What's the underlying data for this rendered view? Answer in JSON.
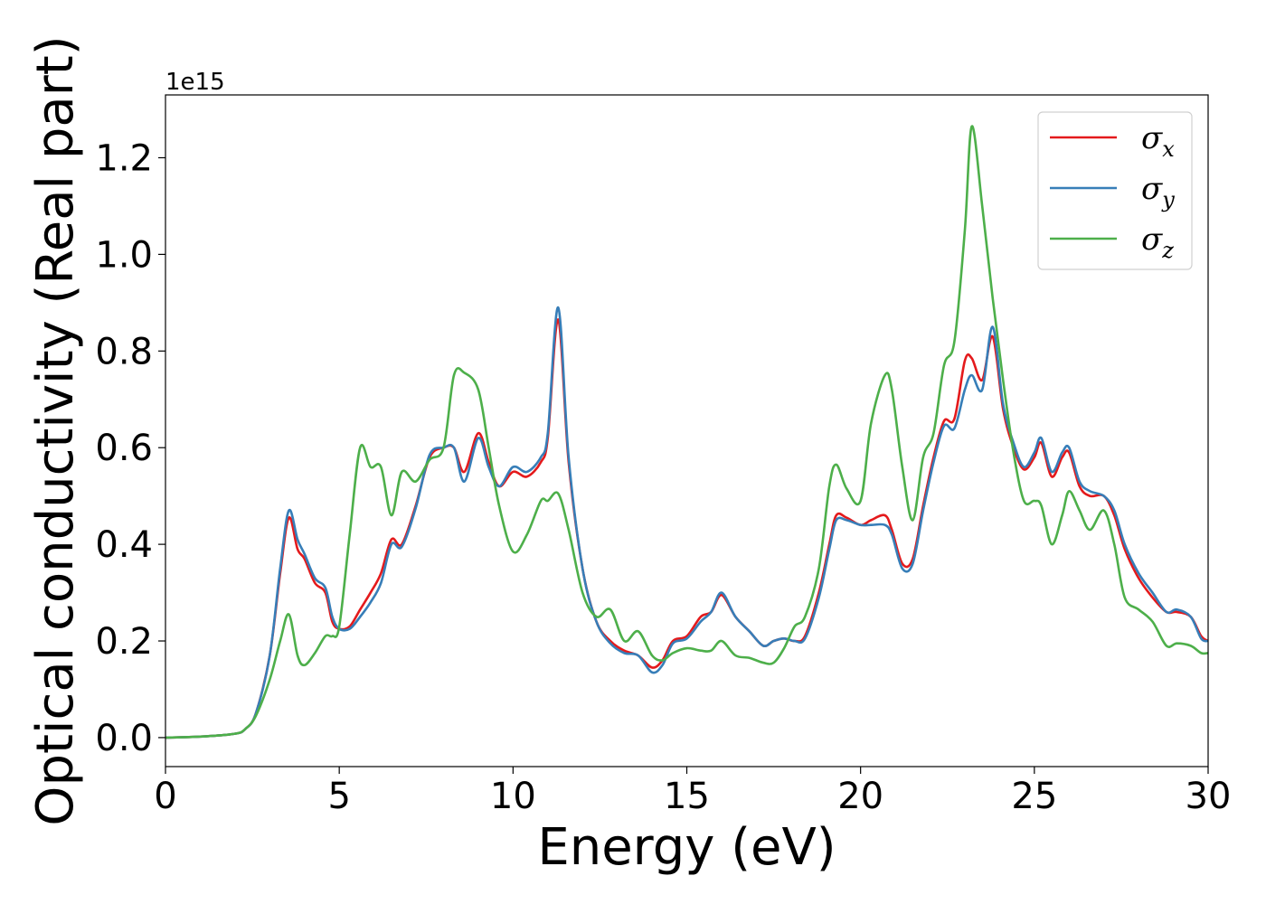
{
  "chart_data": {
    "type": "line",
    "xlabel": "Energy (eV)",
    "ylabel": "Optical conductivity (Real part)",
    "y_offset_label": "1e15",
    "xlim": [
      0,
      30
    ],
    "ylim": [
      -0.06,
      1.33
    ],
    "x_ticks": [
      0,
      5,
      10,
      15,
      20,
      25,
      30
    ],
    "x_tick_labels": [
      "0",
      "5",
      "10",
      "15",
      "20",
      "25",
      "30"
    ],
    "y_ticks": [
      0.0,
      0.2,
      0.4,
      0.6,
      0.8,
      1.0,
      1.2
    ],
    "y_tick_labels": [
      "0.0",
      "0.2",
      "0.4",
      "0.6",
      "0.8",
      "1.0",
      "1.2"
    ],
    "grid": false,
    "legend_position": "top-right",
    "series": [
      {
        "name": "σ",
        "subscript": "x",
        "color": "#e41a1c",
        "x": [
          0,
          1,
          2,
          2.3,
          2.6,
          3.0,
          3.3,
          3.55,
          3.8,
          4.0,
          4.3,
          4.6,
          4.8,
          5.0,
          5.3,
          5.6,
          5.9,
          6.2,
          6.5,
          6.8,
          7.2,
          7.6,
          8.0,
          8.3,
          8.6,
          9.0,
          9.3,
          9.6,
          10.0,
          10.4,
          10.8,
          11.0,
          11.3,
          11.6,
          12.0,
          12.4,
          12.8,
          13.2,
          13.6,
          14.0,
          14.3,
          14.6,
          15.0,
          15.4,
          15.7,
          16.0,
          16.4,
          16.8,
          17.2,
          17.5,
          17.8,
          18.1,
          18.4,
          18.8,
          19.1,
          19.3,
          19.6,
          20.0,
          20.3,
          20.7,
          20.9,
          21.2,
          21.5,
          21.8,
          22.1,
          22.4,
          22.7,
          23.0,
          23.2,
          23.5,
          23.8,
          24.1,
          24.4,
          24.7,
          25.0,
          25.2,
          25.5,
          25.8,
          26.0,
          26.3,
          26.6,
          27.0,
          27.3,
          27.6,
          28.0,
          28.4,
          28.8,
          29.1,
          29.5,
          29.8,
          30.0
        ],
        "y": [
          0.0,
          0.002,
          0.008,
          0.018,
          0.05,
          0.17,
          0.34,
          0.455,
          0.39,
          0.37,
          0.32,
          0.3,
          0.24,
          0.225,
          0.23,
          0.265,
          0.3,
          0.34,
          0.41,
          0.4,
          0.48,
          0.58,
          0.6,
          0.6,
          0.55,
          0.63,
          0.57,
          0.52,
          0.55,
          0.54,
          0.57,
          0.62,
          0.865,
          0.57,
          0.35,
          0.24,
          0.2,
          0.18,
          0.17,
          0.145,
          0.16,
          0.2,
          0.21,
          0.25,
          0.26,
          0.295,
          0.25,
          0.22,
          0.19,
          0.2,
          0.205,
          0.2,
          0.21,
          0.3,
          0.4,
          0.46,
          0.455,
          0.44,
          0.45,
          0.46,
          0.43,
          0.36,
          0.37,
          0.48,
          0.58,
          0.655,
          0.66,
          0.78,
          0.785,
          0.74,
          0.83,
          0.68,
          0.6,
          0.555,
          0.58,
          0.61,
          0.54,
          0.58,
          0.59,
          0.52,
          0.5,
          0.5,
          0.46,
          0.39,
          0.33,
          0.29,
          0.26,
          0.26,
          0.25,
          0.21,
          0.2
        ]
      },
      {
        "name": "σ",
        "subscript": "y",
        "color": "#377eb8",
        "x": [
          0,
          1,
          2,
          2.3,
          2.6,
          3.0,
          3.3,
          3.55,
          3.8,
          4.0,
          4.3,
          4.6,
          4.8,
          5.0,
          5.3,
          5.6,
          5.9,
          6.2,
          6.5,
          6.8,
          7.2,
          7.6,
          8.0,
          8.3,
          8.6,
          9.0,
          9.3,
          9.6,
          10.0,
          10.4,
          10.8,
          11.0,
          11.3,
          11.6,
          12.0,
          12.4,
          12.8,
          13.2,
          13.6,
          14.0,
          14.3,
          14.6,
          15.0,
          15.4,
          15.7,
          16.0,
          16.4,
          16.8,
          17.2,
          17.5,
          17.8,
          18.1,
          18.4,
          18.8,
          19.1,
          19.3,
          19.6,
          20.0,
          20.3,
          20.7,
          20.9,
          21.2,
          21.5,
          21.8,
          22.1,
          22.4,
          22.7,
          23.0,
          23.2,
          23.5,
          23.8,
          24.1,
          24.4,
          24.7,
          25.0,
          25.2,
          25.5,
          25.8,
          26.0,
          26.3,
          26.6,
          27.0,
          27.3,
          27.6,
          28.0,
          28.4,
          28.8,
          29.1,
          29.5,
          29.8,
          30.0
        ],
        "y": [
          0.0,
          0.002,
          0.008,
          0.018,
          0.05,
          0.17,
          0.35,
          0.47,
          0.41,
          0.38,
          0.33,
          0.31,
          0.25,
          0.225,
          0.225,
          0.25,
          0.28,
          0.32,
          0.4,
          0.395,
          0.475,
          0.585,
          0.6,
          0.6,
          0.53,
          0.62,
          0.56,
          0.52,
          0.56,
          0.55,
          0.58,
          0.63,
          0.89,
          0.58,
          0.35,
          0.24,
          0.195,
          0.175,
          0.17,
          0.135,
          0.15,
          0.195,
          0.205,
          0.24,
          0.26,
          0.3,
          0.25,
          0.22,
          0.19,
          0.2,
          0.205,
          0.2,
          0.205,
          0.29,
          0.39,
          0.45,
          0.45,
          0.44,
          0.44,
          0.44,
          0.42,
          0.35,
          0.36,
          0.47,
          0.57,
          0.645,
          0.64,
          0.72,
          0.75,
          0.72,
          0.85,
          0.69,
          0.61,
          0.56,
          0.59,
          0.62,
          0.55,
          0.59,
          0.6,
          0.53,
          0.51,
          0.5,
          0.47,
          0.4,
          0.34,
          0.3,
          0.26,
          0.265,
          0.25,
          0.205,
          0.2
        ]
      },
      {
        "name": "σ",
        "subscript": "z",
        "color": "#4daf4a",
        "x": [
          0,
          1,
          2,
          2.3,
          2.6,
          3.0,
          3.3,
          3.55,
          3.8,
          4.0,
          4.3,
          4.6,
          4.8,
          5.0,
          5.3,
          5.6,
          5.9,
          6.2,
          6.5,
          6.8,
          7.2,
          7.6,
          8.0,
          8.3,
          8.6,
          9.0,
          9.3,
          9.6,
          10.0,
          10.4,
          10.8,
          11.0,
          11.3,
          11.6,
          12.0,
          12.4,
          12.8,
          13.2,
          13.6,
          14.0,
          14.3,
          14.6,
          15.0,
          15.4,
          15.7,
          16.0,
          16.4,
          16.8,
          17.2,
          17.5,
          17.8,
          18.1,
          18.4,
          18.8,
          19.1,
          19.3,
          19.6,
          20.0,
          20.3,
          20.7,
          20.9,
          21.2,
          21.5,
          21.8,
          22.1,
          22.4,
          22.7,
          23.0,
          23.2,
          23.5,
          23.8,
          24.1,
          24.4,
          24.7,
          25.0,
          25.2,
          25.5,
          25.8,
          26.0,
          26.3,
          26.6,
          27.0,
          27.3,
          27.6,
          28.0,
          28.4,
          28.8,
          29.1,
          29.5,
          29.8,
          30.0
        ],
        "y": [
          0.0,
          0.002,
          0.008,
          0.018,
          0.045,
          0.12,
          0.2,
          0.255,
          0.17,
          0.15,
          0.175,
          0.21,
          0.21,
          0.23,
          0.42,
          0.6,
          0.56,
          0.56,
          0.46,
          0.55,
          0.53,
          0.575,
          0.6,
          0.75,
          0.755,
          0.72,
          0.6,
          0.48,
          0.385,
          0.42,
          0.49,
          0.49,
          0.505,
          0.43,
          0.3,
          0.25,
          0.265,
          0.2,
          0.22,
          0.17,
          0.16,
          0.175,
          0.185,
          0.18,
          0.18,
          0.2,
          0.17,
          0.165,
          0.155,
          0.155,
          0.185,
          0.23,
          0.25,
          0.35,
          0.52,
          0.565,
          0.515,
          0.49,
          0.65,
          0.75,
          0.72,
          0.56,
          0.45,
          0.58,
          0.63,
          0.77,
          0.82,
          1.05,
          1.265,
          1.1,
          0.91,
          0.74,
          0.59,
          0.49,
          0.49,
          0.48,
          0.4,
          0.46,
          0.51,
          0.47,
          0.43,
          0.47,
          0.4,
          0.29,
          0.265,
          0.24,
          0.19,
          0.195,
          0.19,
          0.175,
          0.175
        ]
      }
    ]
  }
}
